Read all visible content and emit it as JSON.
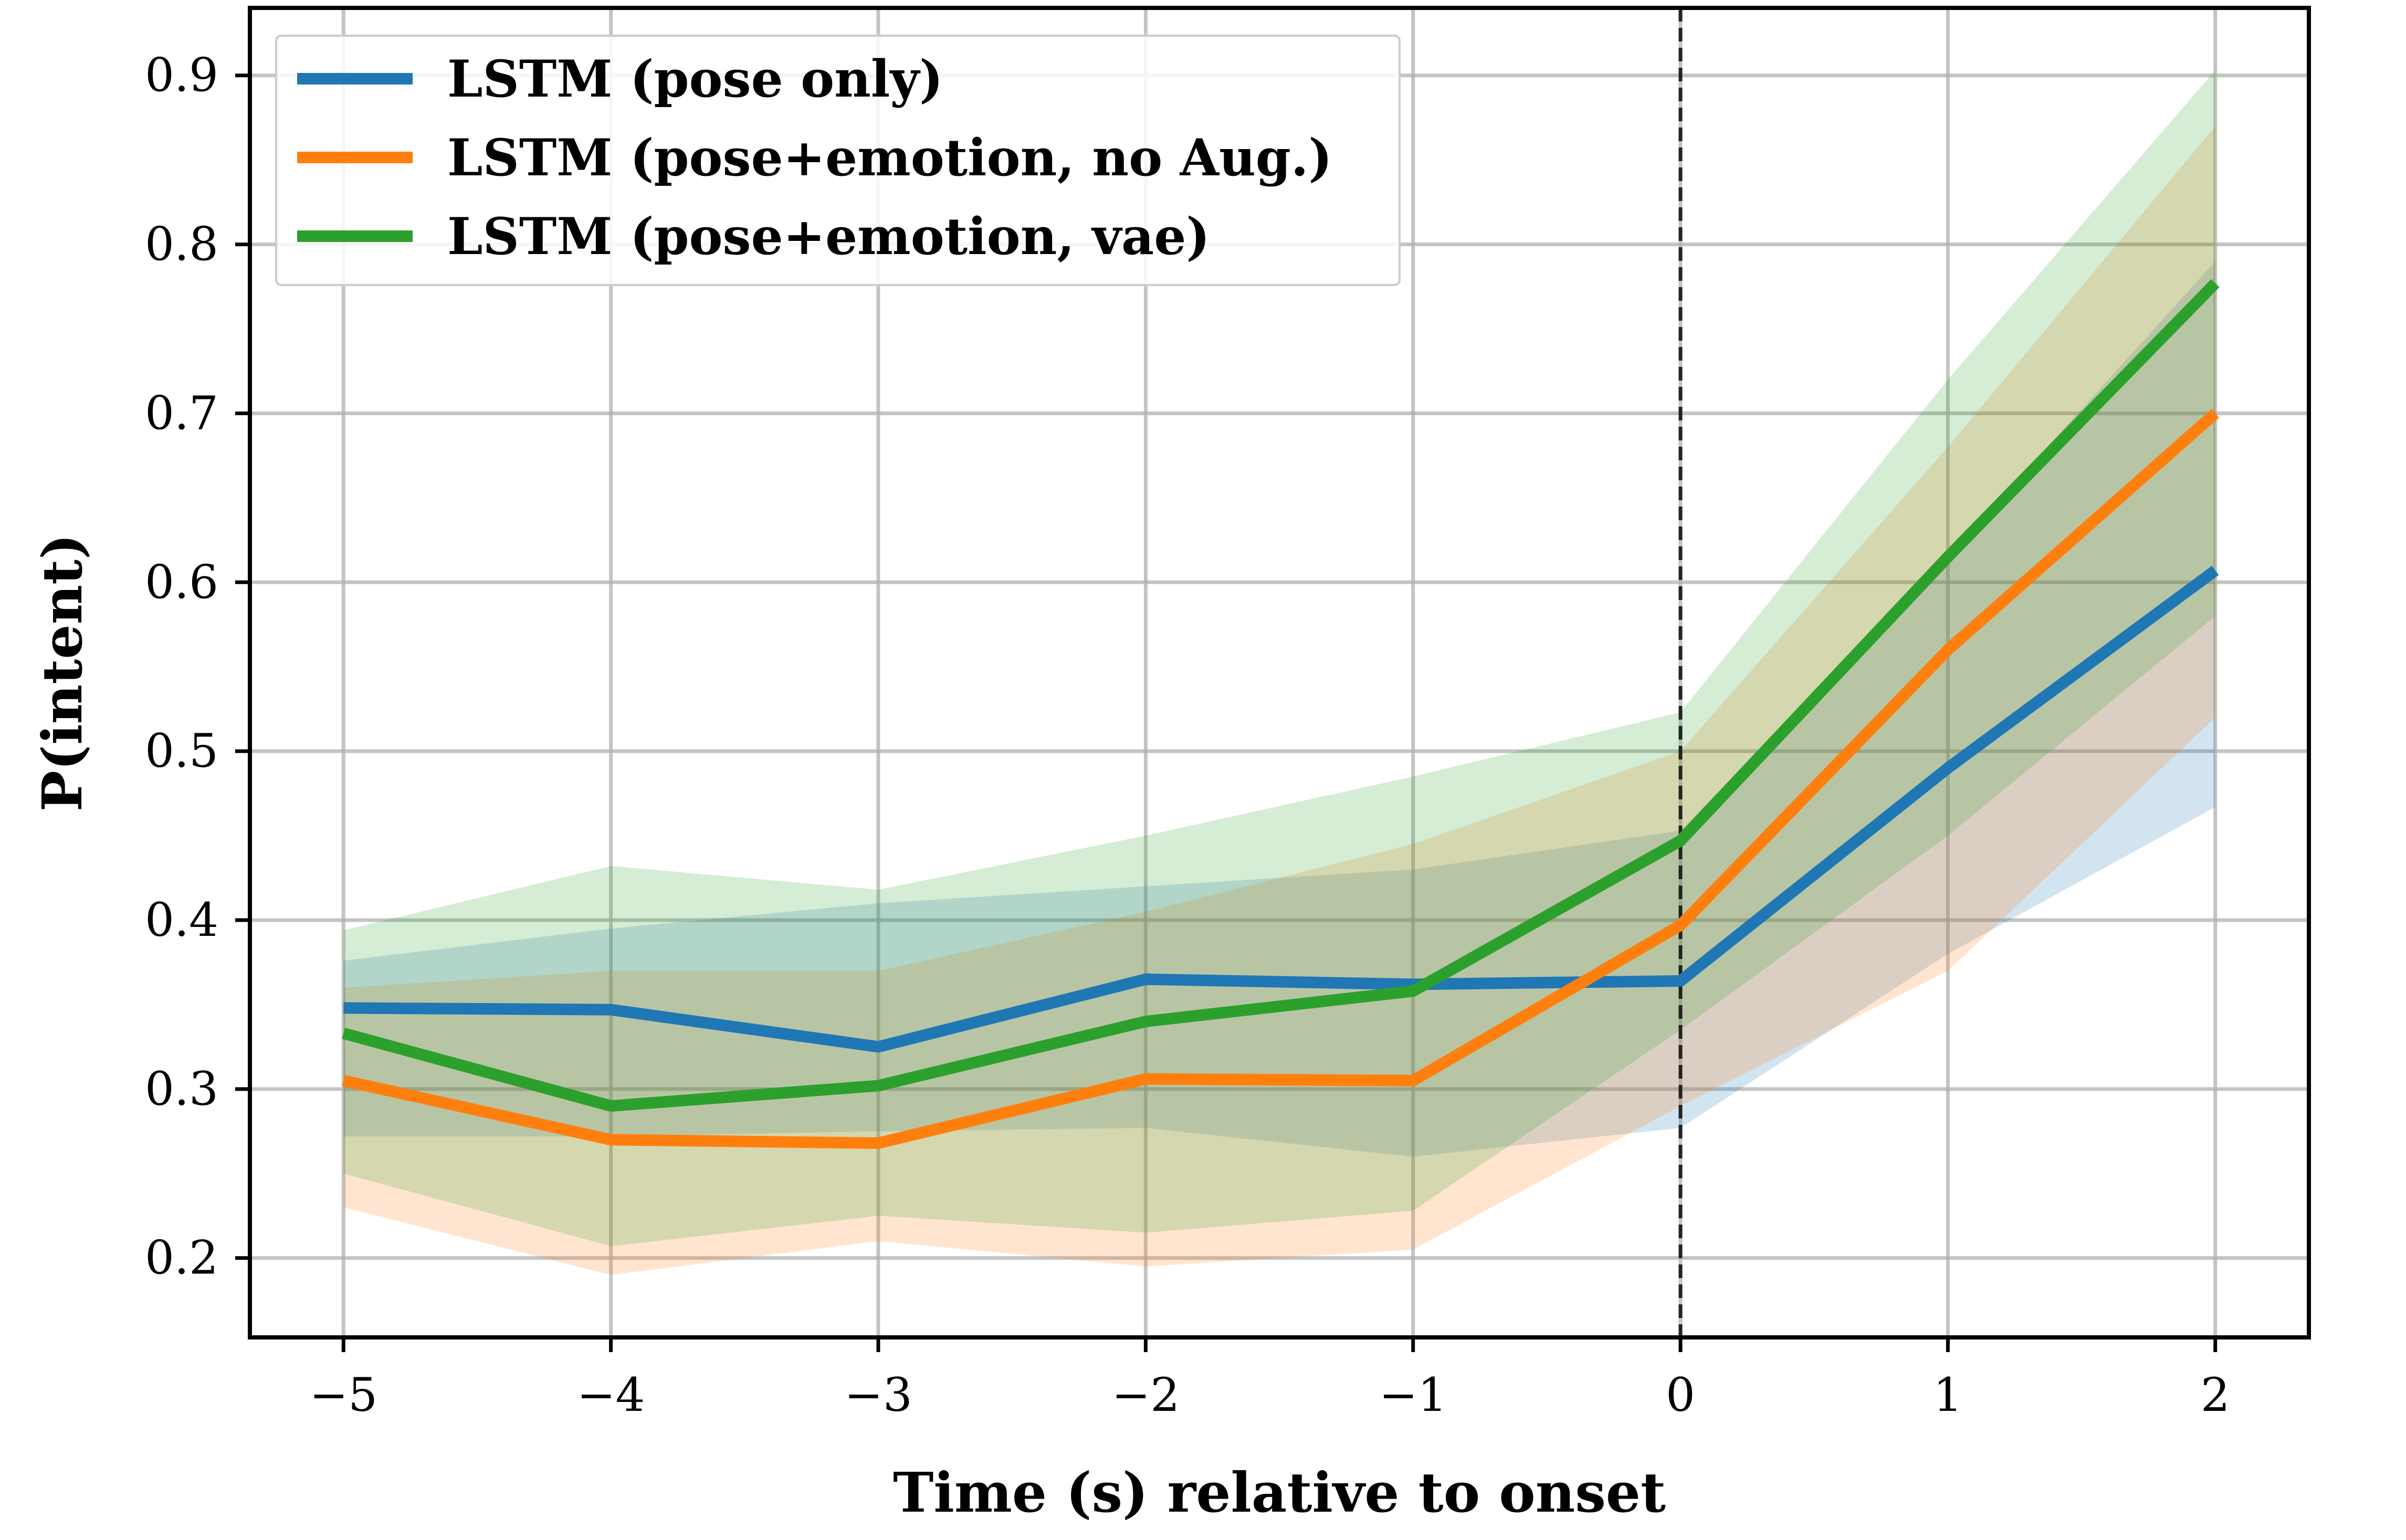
{
  "chart_data": {
    "type": "line",
    "title": "",
    "xlabel": "Time (s) relative to onset",
    "ylabel": "P(intent)",
    "x": [
      -5,
      -4,
      -3,
      -2,
      -1,
      0,
      1,
      2
    ],
    "xticks": [
      -5,
      -4,
      -3,
      -2,
      -1,
      0,
      1,
      2
    ],
    "xtick_labels": [
      "−5",
      "−4",
      "−3",
      "−2",
      "−1",
      "0",
      "1",
      "2"
    ],
    "yticks": [
      0.2,
      0.3,
      0.4,
      0.5,
      0.6,
      0.7,
      0.8,
      0.9
    ],
    "ytick_labels": [
      "0.2",
      "0.3",
      "0.4",
      "0.5",
      "0.6",
      "0.7",
      "0.8",
      "0.9"
    ],
    "xlim": [
      -5.35,
      2.35
    ],
    "ylim": [
      0.153,
      0.94
    ],
    "grid": true,
    "legend_position": "top-left",
    "onset_line_x": 0,
    "series": [
      {
        "name": "LSTM (pose only)",
        "color": "#1f77b4",
        "values": [
          0.348,
          0.347,
          0.325,
          0.365,
          0.362,
          0.364,
          0.49,
          0.607
        ],
        "lower": [
          0.272,
          0.272,
          0.275,
          0.277,
          0.26,
          0.277,
          0.38,
          0.467
        ],
        "upper": [
          0.376,
          0.395,
          0.41,
          0.42,
          0.43,
          0.453,
          0.615,
          0.79
        ]
      },
      {
        "name": "LSTM (pose+emotion, no Aug.)",
        "color": "#ff7f0e",
        "values": [
          0.305,
          0.27,
          0.268,
          0.306,
          0.305,
          0.397,
          0.56,
          0.7
        ],
        "lower": [
          0.23,
          0.19,
          0.21,
          0.195,
          0.205,
          0.29,
          0.37,
          0.52
        ],
        "upper": [
          0.36,
          0.37,
          0.37,
          0.405,
          0.445,
          0.5,
          0.68,
          0.87
        ]
      },
      {
        "name": "LSTM (pose+emotion, vae)",
        "color": "#2ca02c",
        "values": [
          0.333,
          0.29,
          0.302,
          0.34,
          0.358,
          0.447,
          0.615,
          0.777
        ],
        "lower": [
          0.25,
          0.207,
          0.225,
          0.215,
          0.228,
          0.335,
          0.45,
          0.58
        ],
        "upper": [
          0.394,
          0.432,
          0.418,
          0.45,
          0.485,
          0.523,
          0.72,
          0.903
        ]
      }
    ]
  }
}
